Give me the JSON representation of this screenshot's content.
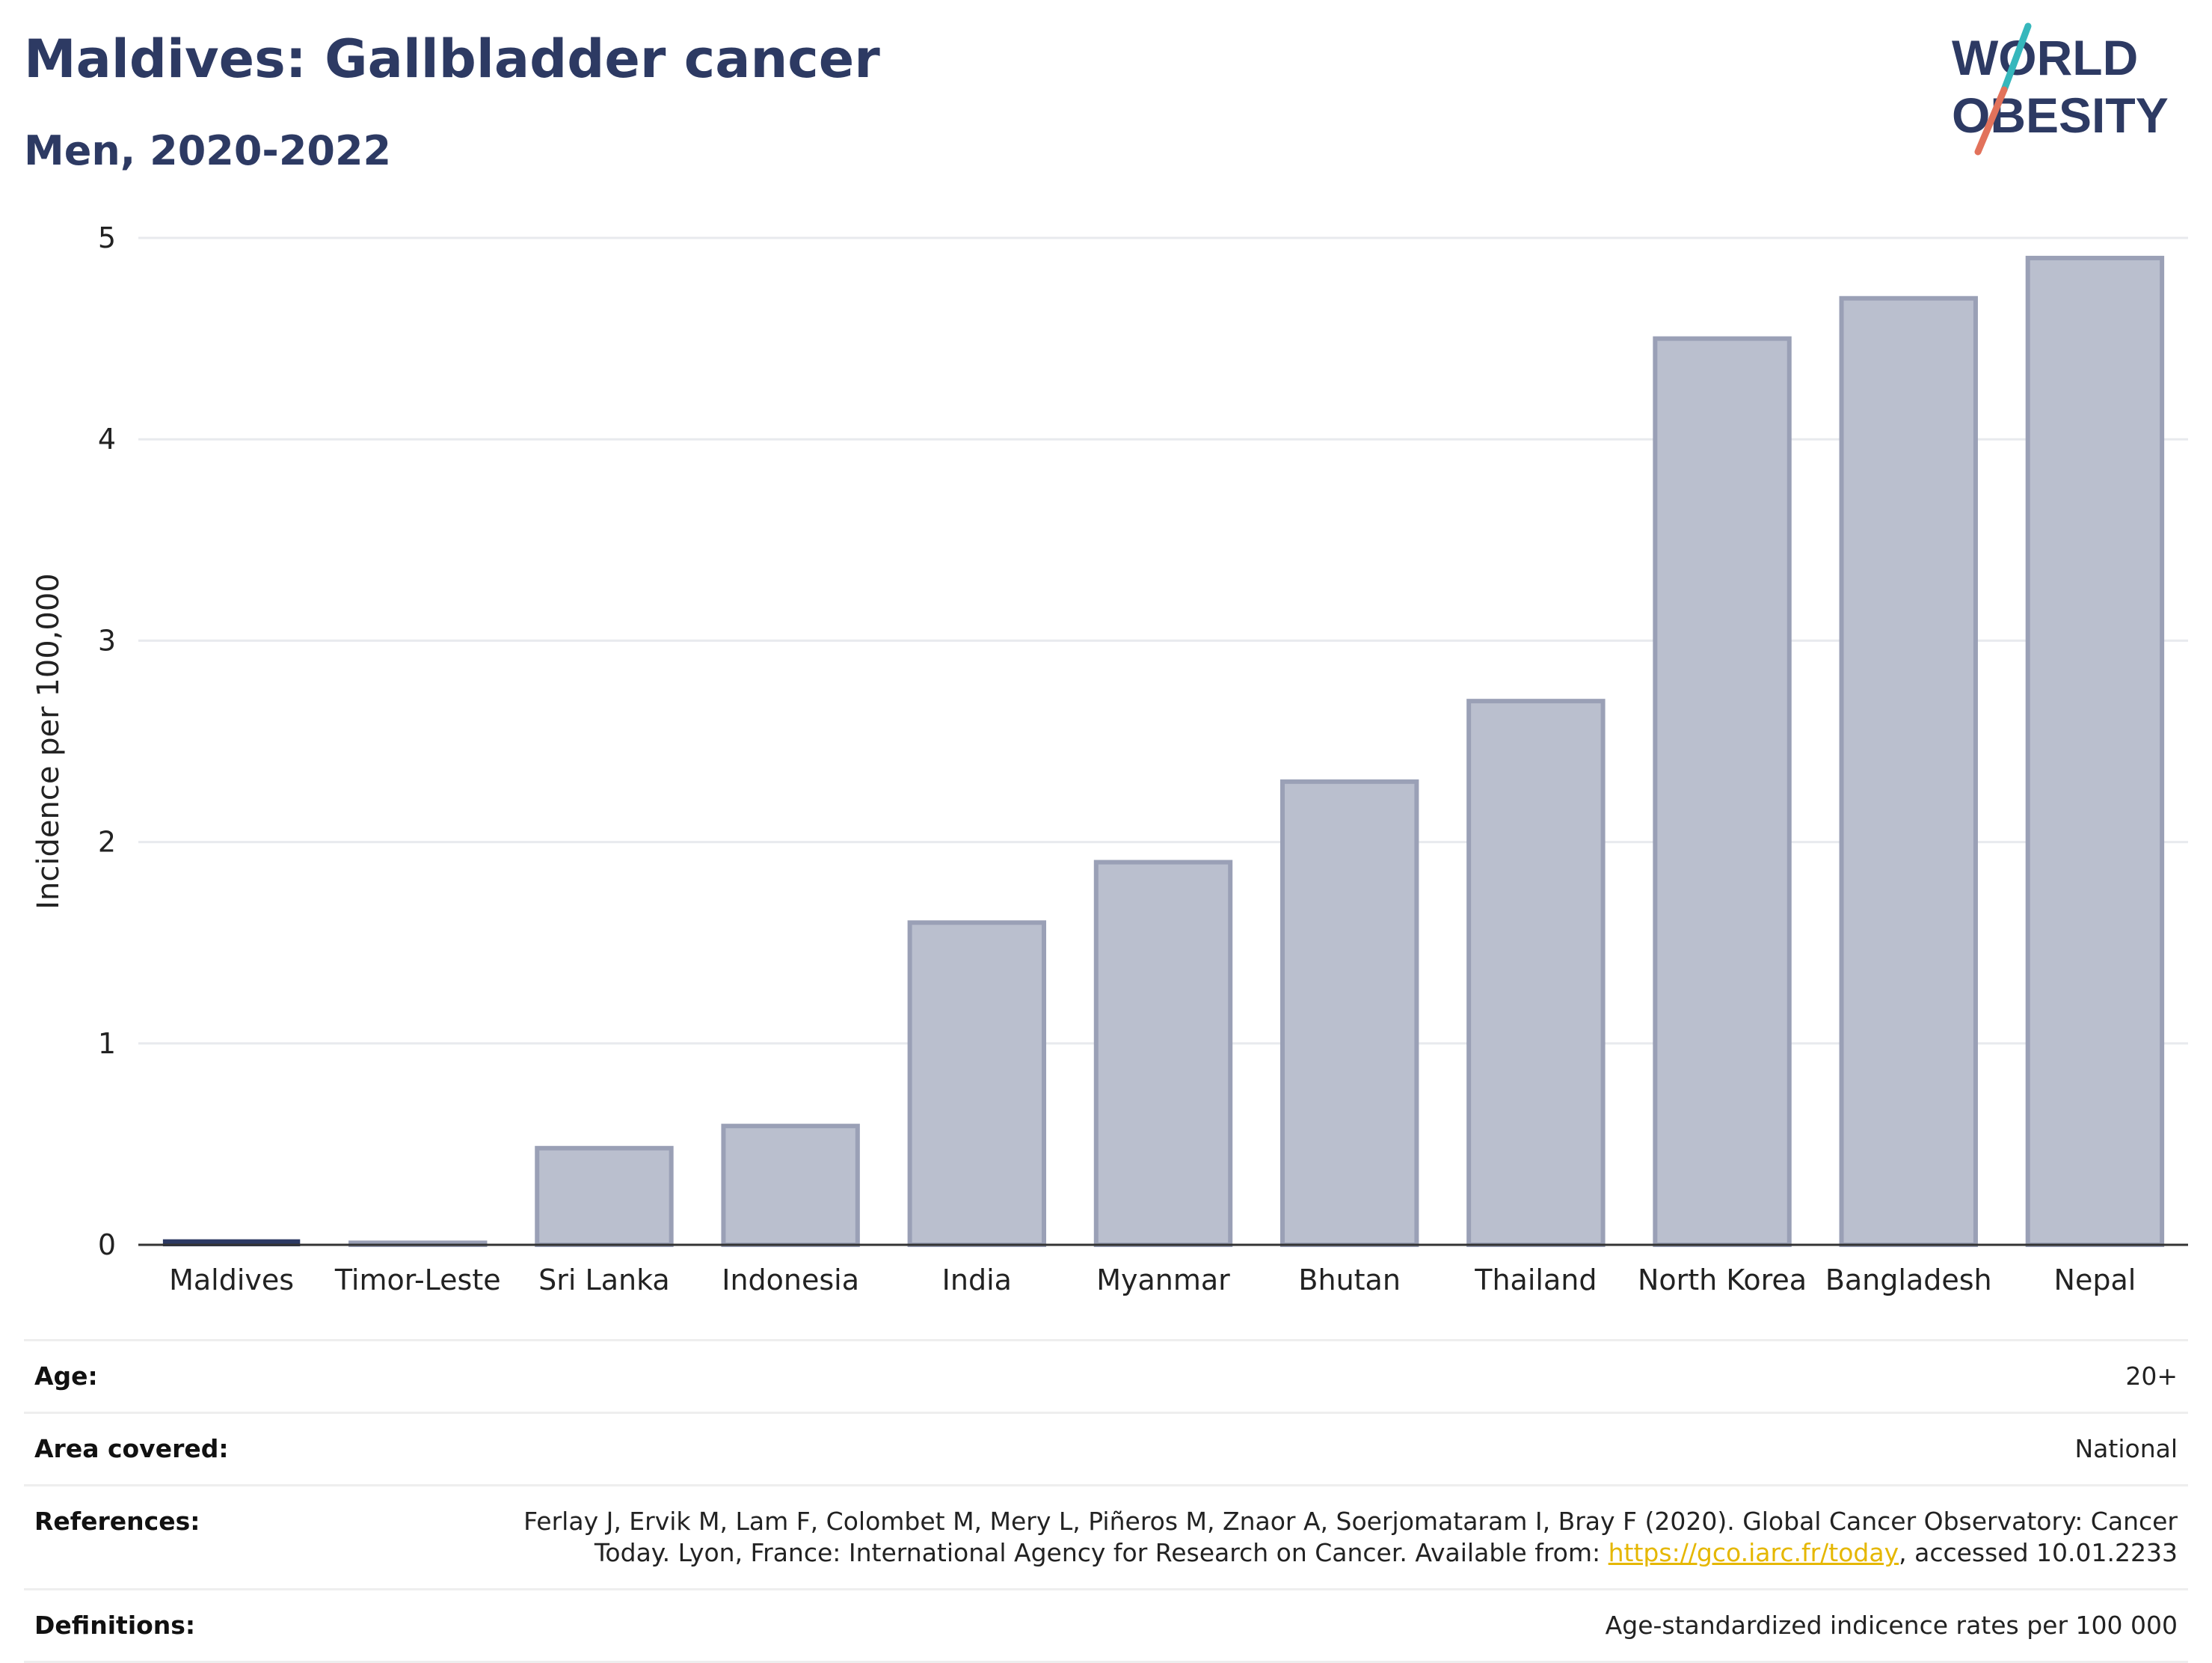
{
  "header": {
    "title": "Maldives: Gallbladder cancer",
    "subtitle": "Men, 2020-2022"
  },
  "logo": {
    "line1": "WORLD",
    "line2": "OBESITY",
    "slash_colors": [
      "#36b7bc",
      "#e2725b"
    ],
    "text_color": "#2d3a63"
  },
  "chart_data": {
    "type": "bar",
    "title": "Maldives: Gallbladder cancer",
    "subtitle": "Men, 2020-2022",
    "ylabel": "Incidence per 100,000",
    "xlabel": "",
    "ylim": [
      0,
      5
    ],
    "yticks": [
      0,
      1,
      2,
      3,
      4,
      5
    ],
    "grid": true,
    "categories": [
      "Maldives",
      "Timor-Leste",
      "Sri Lanka",
      "Indonesia",
      "India",
      "Myanmar",
      "Bhutan",
      "Thailand",
      "North Korea",
      "Bangladesh",
      "Nepal"
    ],
    "values": [
      0.02,
      0.01,
      0.48,
      0.59,
      1.6,
      1.9,
      2.3,
      2.7,
      4.5,
      4.7,
      4.9
    ],
    "highlight": "Maldives",
    "colors": {
      "bar_fill": "#babfce",
      "bar_stroke": "#9aa0b6",
      "highlight": "#2d3a63"
    }
  },
  "meta": [
    {
      "label": "Age:",
      "value": "20+"
    },
    {
      "label": "Area covered:",
      "value": "National"
    },
    {
      "label": "References:",
      "value_line1": "Ferlay J, Ervik M, Lam F, Colombet M, Mery L, Piñeros M, Znaor A, Soerjomataram I, Bray F (2020). Global Cancer Observatory: Cancer",
      "value_line2_pre": "Today. Lyon, France: International Agency for Research on Cancer. Available from: ",
      "link": "https://gco.iarc.fr/today",
      "value_line2_post": ", accessed 10.01.2233"
    },
    {
      "label": "Definitions:",
      "value": "Age-standardized indicence rates per 100 000"
    }
  ]
}
